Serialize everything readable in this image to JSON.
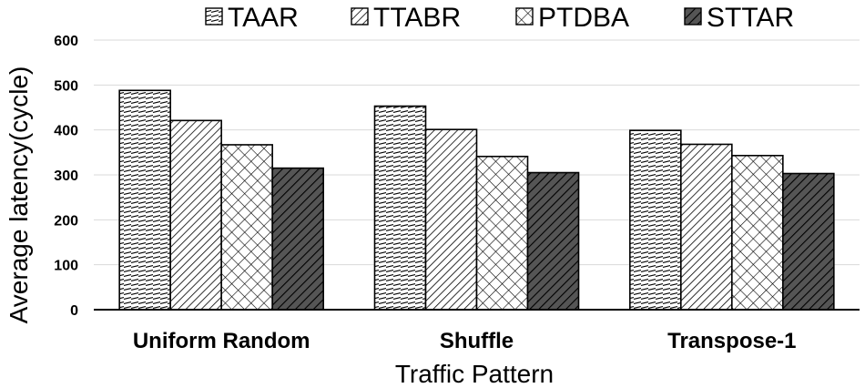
{
  "chart_data": {
    "type": "bar",
    "title": "",
    "xlabel": "Traffic Pattern",
    "ylabel": "Average latency(cycle)",
    "ylim": [
      0,
      600
    ],
    "yticks": [
      "0",
      "100",
      "200",
      "300",
      "400",
      "500",
      "600"
    ],
    "grid": true,
    "legend_position": "top",
    "categories": [
      "Uniform Random",
      "Shuffle",
      "Transpose-1"
    ],
    "series": [
      {
        "name": "TAAR",
        "pattern": "horizontal-dashes",
        "values": [
          488,
          453,
          399
        ]
      },
      {
        "name": "TTABR",
        "pattern": "diagonal-hatch-light",
        "values": [
          421,
          401,
          368
        ]
      },
      {
        "name": "PTDBA",
        "pattern": "crosshatch",
        "values": [
          367,
          341,
          343
        ]
      },
      {
        "name": "STTAR",
        "pattern": "diagonal-hatch-dark",
        "values": [
          315,
          305,
          303
        ]
      }
    ]
  }
}
